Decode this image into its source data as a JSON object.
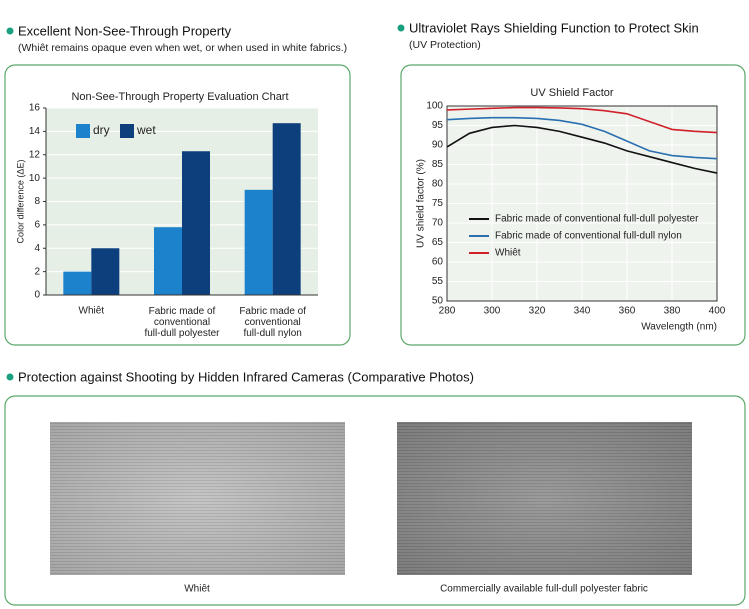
{
  "sections": [
    {
      "heading": "Excellent Non-See-Through Property",
      "subheading": "(Whiêt remains opaque even when wet, or when used in white fabrics.)"
    },
    {
      "heading": "Ultraviolet Rays Shielding Function to Protect Skin",
      "subheading": "(UV Protection)"
    },
    {
      "heading": "Protection against Shooting by Hidden Infrared Cameras (Comparative Photos)"
    }
  ],
  "chart_data": [
    {
      "type": "bar",
      "title": "Non-See-Through Property Evaluation Chart",
      "y_label": "Color difference (ΔE)",
      "categories": [
        "Whiêt",
        "Fabric made of\nconventional\nfull-dull polyester",
        "Fabric made of\nconventional\nfull-dull nylon"
      ],
      "series": [
        {
          "name": "dry",
          "color": "#1c82cc",
          "values": [
            2.0,
            5.8,
            9.0
          ]
        },
        {
          "name": "wet",
          "color": "#0d3f7c",
          "values": [
            4.0,
            12.3,
            14.7
          ]
        }
      ],
      "ylim": [
        0,
        16
      ],
      "yticks": [
        0,
        2,
        4,
        6,
        8,
        10,
        12,
        14,
        16
      ],
      "grid": true,
      "legend": "top-left"
    },
    {
      "type": "line",
      "title": "UV Shield Factor",
      "y_label": "UV shield factor (%)",
      "x_label": "Wavelength (nm)",
      "x": [
        280,
        290,
        300,
        310,
        320,
        330,
        340,
        350,
        360,
        370,
        380,
        390,
        400
      ],
      "series": [
        {
          "name": "Fabric made of conventional full-dull polyester",
          "color": "#111111",
          "values": [
            89.5,
            93,
            94.5,
            95,
            94.5,
            93.5,
            92,
            90.5,
            88.5,
            87,
            85.5,
            84,
            82.8
          ]
        },
        {
          "name": "Fabric made of conventional full-dull nylon",
          "color": "#2a6fb0",
          "values": [
            96.5,
            96.8,
            97,
            97,
            96.8,
            96.3,
            95.3,
            93.5,
            91,
            88.5,
            87.3,
            86.8,
            86.5
          ]
        },
        {
          "name": "Whiêt",
          "color": "#d0202a",
          "values": [
            99,
            99.2,
            99.4,
            99.6,
            99.6,
            99.5,
            99.3,
            98.8,
            98,
            96,
            94,
            93.5,
            93.2
          ]
        }
      ],
      "xlim": [
        280,
        400
      ],
      "xticks": [
        280,
        300,
        320,
        340,
        360,
        380,
        400
      ],
      "ylim": [
        50,
        100
      ],
      "yticks": [
        50,
        55,
        60,
        65,
        70,
        75,
        80,
        85,
        90,
        95,
        100
      ],
      "grid": true,
      "legend": "bottom-left"
    }
  ],
  "photos": {
    "captions": [
      "Whiêt",
      "Commercially available full-dull polyester fabric"
    ]
  }
}
